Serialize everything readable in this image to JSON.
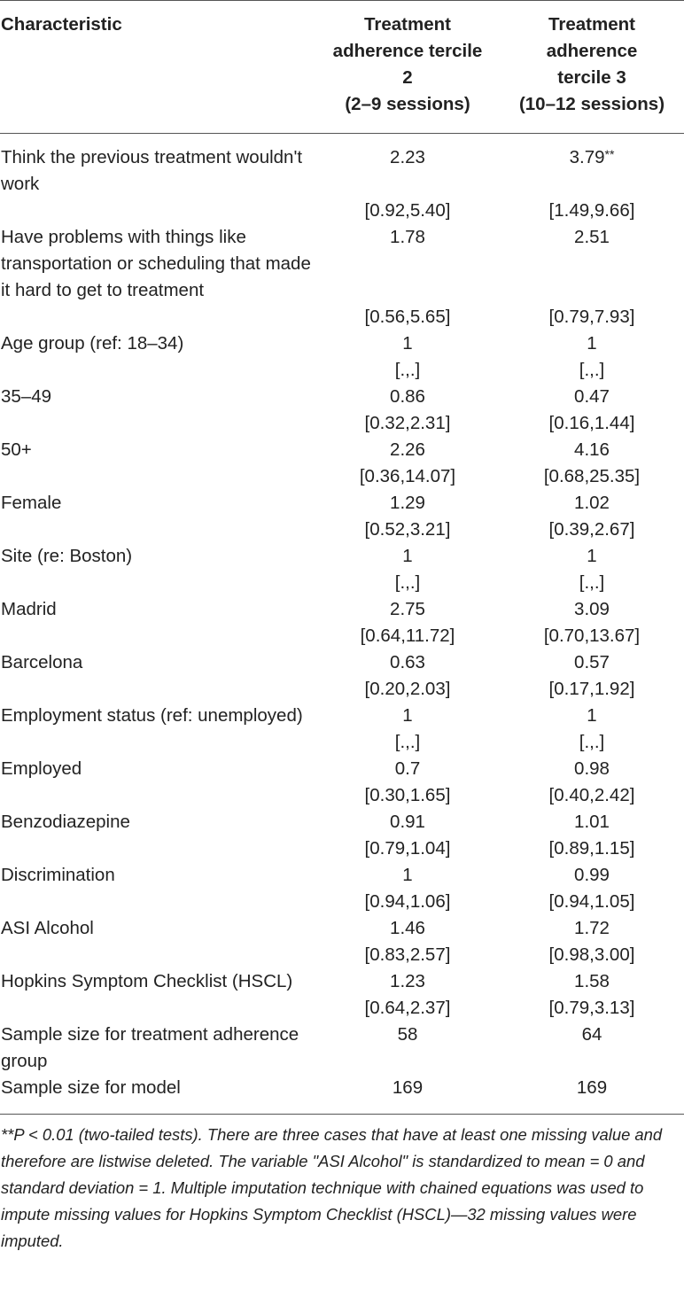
{
  "header": {
    "characteristic": "Characteristic",
    "t2_line1": "Treatment",
    "t2_line2": "adherence tercile",
    "t2_line3": "2",
    "t2_line4": "(2–9 sessions)",
    "t3_line1": "Treatment",
    "t3_line2": "adherence",
    "t3_line3": "tercile 3",
    "t3_line4": "(10–12 sessions)"
  },
  "rows": [
    {
      "label": "Think the previous treatment wouldn't work",
      "t2": "2.23",
      "t3": "3.79",
      "t3_stars": "**"
    },
    {
      "label": "",
      "t2": "[0.92,5.40]",
      "t3": "[1.49,9.66]"
    },
    {
      "label": "Have problems with things like transportation or scheduling that made it hard to get to treatment",
      "t2": "1.78",
      "t3": "2.51"
    },
    {
      "label": "",
      "t2": "[0.56,5.65]",
      "t3": "[0.79,7.93]"
    },
    {
      "label": "Age group (ref: 18–34)",
      "t2": "1",
      "t3": "1"
    },
    {
      "label": "",
      "t2": "[.,.]",
      "t3": "[.,.]"
    },
    {
      "label": "35–49",
      "t2": "0.86",
      "t3": "0.47"
    },
    {
      "label": "",
      "t2": "[0.32,2.31]",
      "t3": "[0.16,1.44]"
    },
    {
      "label": "50+",
      "t2": "2.26",
      "t3": "4.16"
    },
    {
      "label": "",
      "t2": "[0.36,14.07]",
      "t3": "[0.68,25.35]"
    },
    {
      "label": "Female",
      "t2": "1.29",
      "t3": "1.02"
    },
    {
      "label": "",
      "t2": "[0.52,3.21]",
      "t3": "[0.39,2.67]"
    },
    {
      "label": "Site (re: Boston)",
      "t2": "1",
      "t3": "1"
    },
    {
      "label": "",
      "t2": "[.,.]",
      "t3": "[.,.]"
    },
    {
      "label": "Madrid",
      "t2": "2.75",
      "t3": "3.09"
    },
    {
      "label": "",
      "t2": "[0.64,11.72]",
      "t3": "[0.70,13.67]"
    },
    {
      "label": "Barcelona",
      "t2": "0.63",
      "t3": "0.57"
    },
    {
      "label": "",
      "t2": "[0.20,2.03]",
      "t3": "[0.17,1.92]"
    },
    {
      "label": "Employment status (ref: unemployed)",
      "t2": "1",
      "t3": "1"
    },
    {
      "label": "",
      "t2": "[.,.]",
      "t3": "[.,.]"
    },
    {
      "label": "Employed",
      "t2": "0.7",
      "t3": "0.98"
    },
    {
      "label": "",
      "t2": "[0.30,1.65]",
      "t3": "[0.40,2.42]"
    },
    {
      "label": "Benzodiazepine",
      "t2": "0.91",
      "t3": "1.01"
    },
    {
      "label": "",
      "t2": "[0.79,1.04]",
      "t3": "[0.89,1.15]"
    },
    {
      "label": "Discrimination",
      "t2": "1",
      "t3": "0.99"
    },
    {
      "label": "",
      "t2": "[0.94,1.06]",
      "t3": "[0.94,1.05]"
    },
    {
      "label": "ASI Alcohol",
      "t2": "1.46",
      "t3": "1.72"
    },
    {
      "label": "",
      "t2": "[0.83,2.57]",
      "t3": "[0.98,3.00]"
    },
    {
      "label": "Hopkins Symptom Checklist (HSCL)",
      "t2": "1.23",
      "t3": "1.58"
    },
    {
      "label": "",
      "t2": "[0.64,2.37]",
      "t3": "[0.79,3.13]"
    },
    {
      "label": "Sample size for treatment adherence group",
      "t2": "58",
      "t3": "64"
    },
    {
      "label": "Sample size for model",
      "t2": "169",
      "t3": "169"
    }
  ],
  "footnote": {
    "stars": "**",
    "pvalue": "P < 0.01",
    "text": " (two-tailed tests). There are three cases that have at least one missing value and therefore are listwise deleted. The variable \"ASI Alcohol\" is standardized to mean = 0 and standard deviation = 1. Multiple imputation technique with chained equations was used to impute missing values for Hopkins Symptom Checklist (HSCL)—32 missing values were imputed."
  }
}
